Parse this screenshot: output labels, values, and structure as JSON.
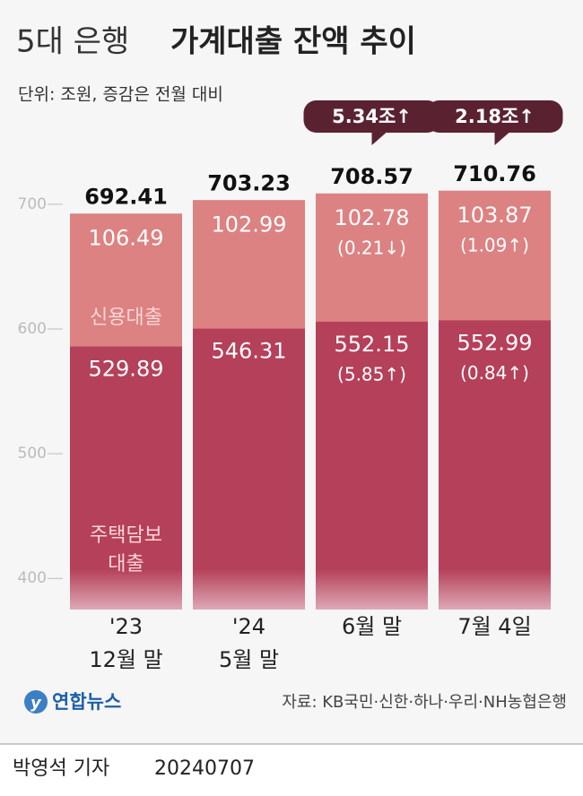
{
  "chart_data": {
    "type": "bar",
    "title": [
      "5대 은행",
      "가계대출 잔액 추이"
    ],
    "subtitle": "단위: 조원, 증감은 전월 대비",
    "categories": [
      [
        "'23",
        "12월 말"
      ],
      [
        "'24",
        "5월 말"
      ],
      [
        "6월 말"
      ],
      [
        "7월 4일"
      ]
    ],
    "totals": {
      "values": [
        692.41,
        703.23,
        708.57,
        710.76
      ],
      "changes": [
        null,
        null,
        "5.34조↑",
        "2.18조↑"
      ]
    },
    "series": [
      {
        "name": [
          "주택담보",
          "대출"
        ],
        "color": "#b5405a",
        "values": [
          529.89,
          546.31,
          552.15,
          552.99
        ],
        "changes": [
          null,
          null,
          "(5.85↑)",
          "(0.84↑)"
        ]
      },
      {
        "name": [
          "신용대출"
        ],
        "color": "#dc8282",
        "values": [
          106.49,
          102.99,
          102.78,
          103.87
        ],
        "changes": [
          null,
          null,
          "(0.21↓)",
          "(1.09↑)"
        ]
      }
    ],
    "ylim": [
      375,
      720
    ],
    "yticks": [
      400,
      500,
      600,
      700
    ]
  },
  "footer": {
    "logo": "연합뉴스",
    "source": "자료: KB국민·신한·하나·우리·NH농협은행",
    "byline": "박영석 기자",
    "date": "20240707"
  }
}
